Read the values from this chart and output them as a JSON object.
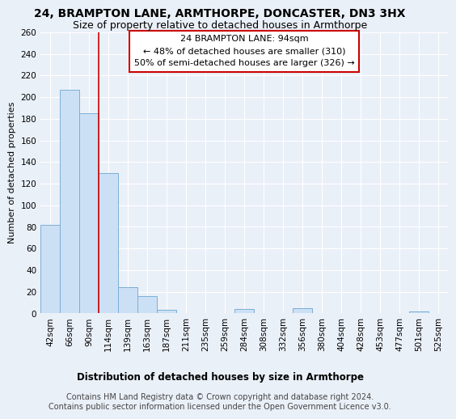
{
  "title": "24, BRAMPTON LANE, ARMTHORPE, DONCASTER, DN3 3HX",
  "subtitle": "Size of property relative to detached houses in Armthorpe",
  "xlabel": "Distribution of detached houses by size in Armthorpe",
  "ylabel": "Number of detached properties",
  "categories": [
    "42sqm",
    "66sqm",
    "90sqm",
    "114sqm",
    "139sqm",
    "163sqm",
    "187sqm",
    "211sqm",
    "235sqm",
    "259sqm",
    "284sqm",
    "308sqm",
    "332sqm",
    "356sqm",
    "380sqm",
    "404sqm",
    "428sqm",
    "453sqm",
    "477sqm",
    "501sqm",
    "525sqm"
  ],
  "values": [
    82,
    207,
    185,
    130,
    24,
    16,
    3,
    0,
    0,
    0,
    4,
    0,
    0,
    5,
    0,
    0,
    0,
    0,
    0,
    2,
    0
  ],
  "bar_color": "#cce0f5",
  "bar_edge_color": "#7bafd4",
  "vline_x": 2.5,
  "vline_color": "#cc0000",
  "annotation_box_text": "24 BRAMPTON LANE: 94sqm\n← 48% of detached houses are smaller (310)\n50% of semi-detached houses are larger (326) →",
  "annotation_box_color": "white",
  "annotation_box_edgecolor": "#cc0000",
  "ylim": [
    0,
    260
  ],
  "yticks": [
    0,
    20,
    40,
    60,
    80,
    100,
    120,
    140,
    160,
    180,
    200,
    220,
    240,
    260
  ],
  "bg_color": "#eaf0f8",
  "grid_color": "#ffffff",
  "footer": "Contains HM Land Registry data © Crown copyright and database right 2024.\nContains public sector information licensed under the Open Government Licence v3.0.",
  "title_fontsize": 10,
  "subtitle_fontsize": 9,
  "xlabel_fontsize": 8.5,
  "ylabel_fontsize": 8,
  "tick_fontsize": 7.5,
  "annotation_fontsize": 8,
  "footer_fontsize": 7
}
